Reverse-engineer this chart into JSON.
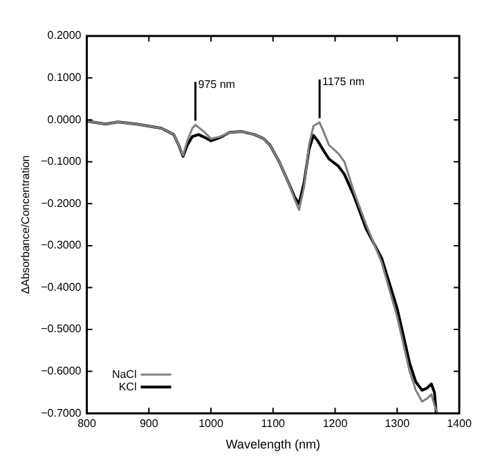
{
  "chart_data": {
    "type": "line",
    "xlabel": "Wavelength (nm)",
    "ylabel": "ΔAbsorbance/Concentration",
    "xlim": [
      800,
      1400
    ],
    "xticks": [
      800,
      900,
      1000,
      1100,
      1200,
      1300,
      1400
    ],
    "ylim": [
      -0.7,
      0.2
    ],
    "yticks": [
      {
        "value": 0.2,
        "label": "0.2000"
      },
      {
        "value": 0.1,
        "label": "0.1000"
      },
      {
        "value": 0,
        "label": "0.0000"
      },
      {
        "value": -0.1,
        "label": "−0.1000"
      },
      {
        "value": -0.2,
        "label": "−0.2000"
      },
      {
        "value": -0.3,
        "label": "−0.3000"
      },
      {
        "value": -0.4,
        "label": "−0.4000"
      },
      {
        "value": -0.5,
        "label": "−0.5000"
      },
      {
        "value": -0.6,
        "label": "−0.6000"
      },
      {
        "value": -0.7,
        "label": "−0.7000"
      }
    ],
    "grid": false,
    "legend": "bottom left",
    "marker": "none",
    "line_style": "solid",
    "annotations": [
      {
        "text": "975 nm",
        "x": 975,
        "y": -0.012
      },
      {
        "text": "1175 nm",
        "x": 1175,
        "y": -0.006
      }
    ],
    "series": [
      {
        "name": "NaCl",
        "color": "#808080",
        "x": [
          800,
          830,
          850,
          880,
          900,
          920,
          940,
          948,
          955,
          962,
          970,
          975,
          990,
          1000,
          1015,
          1030,
          1050,
          1070,
          1085,
          1095,
          1110,
          1125,
          1135,
          1142,
          1150,
          1158,
          1165,
          1175,
          1182,
          1190,
          1205,
          1215,
          1230,
          1250,
          1275,
          1300,
          1320,
          1330,
          1340,
          1348,
          1355,
          1360,
          1365
        ],
        "values": [
          -0.003,
          -0.01,
          -0.005,
          -0.01,
          -0.015,
          -0.02,
          -0.035,
          -0.06,
          -0.085,
          -0.05,
          -0.02,
          -0.012,
          -0.03,
          -0.045,
          -0.04,
          -0.03,
          -0.028,
          -0.035,
          -0.045,
          -0.06,
          -0.1,
          -0.15,
          -0.19,
          -0.215,
          -0.16,
          -0.06,
          -0.015,
          -0.006,
          -0.03,
          -0.06,
          -0.08,
          -0.1,
          -0.17,
          -0.25,
          -0.34,
          -0.47,
          -0.6,
          -0.645,
          -0.672,
          -0.665,
          -0.655,
          -0.68,
          -0.7
        ]
      },
      {
        "name": "KCl",
        "color": "#000000",
        "x": [
          800,
          830,
          850,
          880,
          900,
          920,
          940,
          948,
          955,
          962,
          970,
          980,
          990,
          1000,
          1015,
          1030,
          1050,
          1070,
          1085,
          1095,
          1110,
          1125,
          1135,
          1142,
          1150,
          1158,
          1165,
          1172,
          1180,
          1190,
          1205,
          1215,
          1230,
          1250,
          1275,
          1300,
          1320,
          1330,
          1340,
          1348,
          1355,
          1360,
          1363
        ],
        "values": [
          -0.003,
          -0.01,
          -0.005,
          -0.01,
          -0.015,
          -0.02,
          -0.035,
          -0.06,
          -0.087,
          -0.06,
          -0.04,
          -0.035,
          -0.042,
          -0.05,
          -0.042,
          -0.03,
          -0.028,
          -0.035,
          -0.045,
          -0.06,
          -0.1,
          -0.15,
          -0.185,
          -0.2,
          -0.15,
          -0.07,
          -0.037,
          -0.05,
          -0.07,
          -0.093,
          -0.11,
          -0.13,
          -0.18,
          -0.26,
          -0.33,
          -0.45,
          -0.58,
          -0.625,
          -0.645,
          -0.64,
          -0.63,
          -0.65,
          -0.7
        ]
      }
    ]
  }
}
